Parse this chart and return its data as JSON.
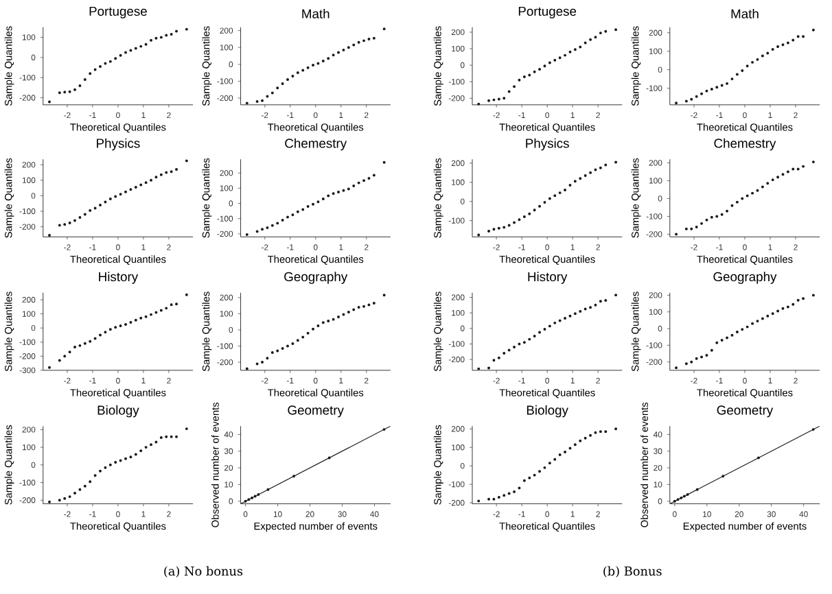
{
  "chart_data": [
    {
      "type": "scatter",
      "title": "Portugese",
      "xlabel": "Theoretical Quantiles",
      "ylabel": "Sample Quantiles",
      "marker": "circle",
      "color": "#1a1a1a",
      "xlim": [
        -2.95,
        2.95
      ],
      "xticks": [
        -2,
        -1,
        0,
        1,
        2
      ],
      "ylim": [
        -235,
        150
      ],
      "yticks": [
        -200,
        -100,
        0,
        100
      ],
      "x": [
        -2.7,
        -2.3,
        -2.1,
        -1.9,
        -1.7,
        -1.5,
        -1.3,
        -1.1,
        -0.9,
        -0.7,
        -0.5,
        -0.3,
        -0.1,
        0.1,
        0.3,
        0.5,
        0.7,
        0.9,
        1.1,
        1.3,
        1.5,
        1.7,
        1.9,
        2.1,
        2.3,
        2.7
      ],
      "values": [
        -220,
        -175,
        -172,
        -170,
        -160,
        -140,
        -110,
        -80,
        -60,
        -45,
        -30,
        -20,
        -5,
        10,
        25,
        35,
        45,
        55,
        65,
        85,
        95,
        100,
        110,
        115,
        130,
        140
      ]
    },
    {
      "type": "scatter",
      "title": "Math",
      "xlabel": "Theoretical Quantiles",
      "ylabel": "Sample Quantiles",
      "marker": "circle",
      "color": "#1a1a1a",
      "xlim": [
        -2.95,
        2.95
      ],
      "xticks": [
        -2,
        -1,
        0,
        1,
        2
      ],
      "ylim": [
        -240,
        220
      ],
      "yticks": [
        -200,
        -100,
        0,
        100,
        200
      ],
      "x": [
        -2.7,
        -2.3,
        -2.1,
        -1.9,
        -1.7,
        -1.5,
        -1.3,
        -1.1,
        -0.9,
        -0.7,
        -0.5,
        -0.3,
        -0.1,
        0.1,
        0.3,
        0.5,
        0.7,
        0.9,
        1.1,
        1.3,
        1.5,
        1.7,
        1.9,
        2.1,
        2.3,
        2.7
      ],
      "values": [
        -230,
        -220,
        -215,
        -190,
        -170,
        -140,
        -115,
        -90,
        -70,
        -50,
        -35,
        -20,
        -5,
        5,
        20,
        35,
        55,
        70,
        85,
        100,
        115,
        130,
        140,
        150,
        155,
        210
      ]
    },
    {
      "type": "scatter",
      "title": "Physics",
      "xlabel": "Theoretical Quantiles",
      "ylabel": "Sample Quantiles",
      "marker": "circle",
      "color": "#1a1a1a",
      "xlim": [
        -2.95,
        2.95
      ],
      "xticks": [
        -2,
        -1,
        0,
        1,
        2
      ],
      "ylim": [
        -265,
        235
      ],
      "yticks": [
        -200,
        -100,
        0,
        100,
        200
      ],
      "x": [
        -2.7,
        -2.3,
        -2.1,
        -1.9,
        -1.7,
        -1.5,
        -1.3,
        -1.1,
        -0.9,
        -0.7,
        -0.5,
        -0.3,
        -0.1,
        0.1,
        0.3,
        0.5,
        0.7,
        0.9,
        1.1,
        1.3,
        1.5,
        1.7,
        1.9,
        2.1,
        2.3,
        2.7
      ],
      "values": [
        -255,
        -190,
        -185,
        -175,
        -160,
        -140,
        -120,
        -95,
        -80,
        -60,
        -40,
        -20,
        -5,
        10,
        25,
        40,
        55,
        70,
        85,
        100,
        120,
        135,
        150,
        155,
        170,
        225
      ]
    },
    {
      "type": "scatter",
      "title": "Chemestry",
      "xlabel": "Theoretical Quantiles",
      "ylabel": "Sample Quantiles",
      "marker": "circle",
      "color": "#1a1a1a",
      "xlim": [
        -2.95,
        2.95
      ],
      "xticks": [
        -2,
        -1,
        0,
        1,
        2
      ],
      "ylim": [
        -220,
        290
      ],
      "yticks": [
        -200,
        -100,
        0,
        100,
        200
      ],
      "x": [
        -2.7,
        -2.3,
        -2.1,
        -1.9,
        -1.7,
        -1.5,
        -1.3,
        -1.1,
        -0.9,
        -0.7,
        -0.5,
        -0.3,
        -0.1,
        0.1,
        0.3,
        0.5,
        0.7,
        0.9,
        1.1,
        1.3,
        1.5,
        1.7,
        1.9,
        2.1,
        2.3,
        2.7
      ],
      "values": [
        -205,
        -185,
        -170,
        -160,
        -145,
        -130,
        -110,
        -90,
        -75,
        -55,
        -40,
        -20,
        -5,
        10,
        30,
        50,
        65,
        75,
        85,
        95,
        115,
        135,
        150,
        165,
        185,
        270
      ]
    },
    {
      "type": "scatter",
      "title": "History",
      "xlabel": "Theoretical Quantiles",
      "ylabel": "Sample Quantiles",
      "marker": "circle",
      "color": "#1a1a1a",
      "xlim": [
        -2.95,
        2.95
      ],
      "xticks": [
        -2,
        -1,
        0,
        1,
        2
      ],
      "ylim": [
        -300,
        250
      ],
      "yticks": [
        -300,
        -200,
        -100,
        0,
        100,
        200
      ],
      "x": [
        -2.7,
        -2.3,
        -2.1,
        -1.9,
        -1.7,
        -1.5,
        -1.3,
        -1.1,
        -0.9,
        -0.7,
        -0.5,
        -0.3,
        -0.1,
        0.1,
        0.3,
        0.5,
        0.7,
        0.9,
        1.1,
        1.3,
        1.5,
        1.7,
        1.9,
        2.1,
        2.3,
        2.7
      ],
      "values": [
        -280,
        -230,
        -200,
        -170,
        -135,
        -125,
        -110,
        -95,
        -75,
        -50,
        -30,
        -10,
        5,
        15,
        25,
        40,
        55,
        70,
        80,
        95,
        110,
        125,
        140,
        165,
        170,
        235
      ]
    },
    {
      "type": "scatter",
      "title": "Geography",
      "xlabel": "Theoretical Quantiles",
      "ylabel": "Sample Quantiles",
      "marker": "circle",
      "color": "#1a1a1a",
      "xlim": [
        -2.95,
        2.95
      ],
      "xticks": [
        -2,
        -1,
        0,
        1,
        2
      ],
      "ylim": [
        -250,
        230
      ],
      "yticks": [
        -200,
        -100,
        0,
        100,
        200
      ],
      "x": [
        -2.7,
        -2.3,
        -2.1,
        -1.9,
        -1.7,
        -1.5,
        -1.3,
        -1.1,
        -0.9,
        -0.7,
        -0.5,
        -0.3,
        -0.1,
        0.1,
        0.3,
        0.5,
        0.7,
        0.9,
        1.1,
        1.3,
        1.5,
        1.7,
        1.9,
        2.1,
        2.3,
        2.7
      ],
      "values": [
        -240,
        -210,
        -200,
        -175,
        -140,
        -130,
        -115,
        -100,
        -85,
        -65,
        -45,
        -20,
        5,
        25,
        45,
        55,
        65,
        80,
        95,
        110,
        125,
        140,
        145,
        155,
        165,
        215
      ]
    },
    {
      "type": "scatter",
      "title": "Biology",
      "xlabel": "Theoretical Quantiles",
      "ylabel": "Sample Quantiles",
      "marker": "circle",
      "color": "#1a1a1a",
      "xlim": [
        -2.95,
        2.95
      ],
      "xticks": [
        -2,
        -1,
        0,
        1,
        2
      ],
      "ylim": [
        -220,
        220
      ],
      "yticks": [
        -200,
        -100,
        0,
        100,
        200
      ],
      "x": [
        -2.7,
        -2.3,
        -2.1,
        -1.9,
        -1.7,
        -1.5,
        -1.3,
        -1.1,
        -0.9,
        -0.7,
        -0.5,
        -0.3,
        -0.1,
        0.1,
        0.3,
        0.5,
        0.7,
        0.9,
        1.1,
        1.3,
        1.5,
        1.7,
        1.9,
        2.1,
        2.3,
        2.7
      ],
      "values": [
        -210,
        -200,
        -190,
        -180,
        -160,
        -140,
        -120,
        -95,
        -60,
        -35,
        -15,
        0,
        15,
        25,
        35,
        45,
        60,
        80,
        100,
        115,
        130,
        155,
        160,
        160,
        160,
        205
      ]
    },
    {
      "type": "scatter",
      "title": "Geometry",
      "xlabel": "Expected number of events",
      "ylabel": "Observed number of events",
      "xlim": [
        -1.5,
        45
      ],
      "xticks": [
        0,
        10,
        20,
        30,
        40
      ],
      "ylim": [
        -1.5,
        45
      ],
      "yticks": [
        0,
        10,
        20,
        30,
        40
      ],
      "annotations": [
        "(a) No bonus"
      ],
      "series": [
        {
          "type": "line",
          "color": "#1a1a1a",
          "x": [
            -1.5,
            45
          ],
          "values": [
            -1.5,
            45
          ]
        },
        {
          "type": "scatter",
          "marker": "circle",
          "color": "#1a1a1a",
          "x": [
            0,
            1,
            2,
            3,
            4,
            7,
            15,
            26,
            43
          ],
          "values": [
            0,
            1,
            2,
            3,
            4,
            7,
            15,
            26,
            43
          ]
        }
      ]
    },
    {
      "type": "scatter",
      "title": "Portugese",
      "xlabel": "Theoretical Quantiles",
      "ylabel": "Sample Quantiles",
      "marker": "circle",
      "color": "#1a1a1a",
      "xlim": [
        -2.95,
        2.95
      ],
      "xticks": [
        -2,
        -1,
        0,
        1,
        2
      ],
      "ylim": [
        -240,
        230
      ],
      "yticks": [
        -200,
        -100,
        0,
        100,
        200
      ],
      "x": [
        -2.7,
        -2.3,
        -2.1,
        -1.9,
        -1.7,
        -1.5,
        -1.3,
        -1.1,
        -0.9,
        -0.7,
        -0.5,
        -0.3,
        -0.1,
        0.1,
        0.3,
        0.5,
        0.7,
        0.9,
        1.1,
        1.3,
        1.5,
        1.7,
        1.9,
        2.1,
        2.3,
        2.7
      ],
      "values": [
        -235,
        -215,
        -210,
        -205,
        -200,
        -160,
        -130,
        -90,
        -70,
        -60,
        -40,
        -25,
        -5,
        15,
        30,
        45,
        60,
        80,
        95,
        110,
        135,
        155,
        170,
        195,
        205,
        215
      ]
    },
    {
      "type": "scatter",
      "title": "Math",
      "xlabel": "Theoretical Quantiles",
      "ylabel": "Sample Quantiles",
      "marker": "circle",
      "color": "#1a1a1a",
      "xlim": [
        -2.95,
        2.95
      ],
      "xticks": [
        -2,
        -1,
        0,
        1,
        2
      ],
      "ylim": [
        -190,
        230
      ],
      "yticks": [
        -100,
        0,
        100,
        200
      ],
      "x": [
        -2.7,
        -2.3,
        -2.1,
        -1.9,
        -1.7,
        -1.5,
        -1.3,
        -1.1,
        -0.9,
        -0.7,
        -0.5,
        -0.3,
        -0.1,
        0.1,
        0.3,
        0.5,
        0.7,
        0.9,
        1.1,
        1.3,
        1.5,
        1.7,
        1.9,
        2.1,
        2.3,
        2.7
      ],
      "values": [
        -180,
        -170,
        -160,
        -145,
        -130,
        -115,
        -105,
        -95,
        -85,
        -75,
        -50,
        -25,
        -5,
        20,
        40,
        55,
        75,
        90,
        110,
        125,
        135,
        145,
        160,
        180,
        180,
        215
      ]
    },
    {
      "type": "scatter",
      "title": "Physics",
      "xlabel": "Theoretical Quantiles",
      "ylabel": "Sample Quantiles",
      "marker": "circle",
      "color": "#1a1a1a",
      "xlim": [
        -2.95,
        2.95
      ],
      "xticks": [
        -2,
        -1,
        0,
        1,
        2
      ],
      "ylim": [
        -185,
        220
      ],
      "yticks": [
        -100,
        0,
        100,
        200
      ],
      "x": [
        -2.7,
        -2.3,
        -2.1,
        -1.9,
        -1.7,
        -1.5,
        -1.3,
        -1.1,
        -0.9,
        -0.7,
        -0.5,
        -0.3,
        -0.1,
        0.1,
        0.3,
        0.5,
        0.7,
        0.9,
        1.1,
        1.3,
        1.5,
        1.7,
        1.9,
        2.1,
        2.3,
        2.7
      ],
      "values": [
        -175,
        -155,
        -145,
        -140,
        -135,
        -125,
        -110,
        -95,
        -80,
        -65,
        -45,
        -25,
        -5,
        15,
        30,
        45,
        60,
        85,
        105,
        120,
        135,
        150,
        165,
        175,
        190,
        205
      ]
    },
    {
      "type": "scatter",
      "title": "Chemestry",
      "xlabel": "Theoretical Quantiles",
      "ylabel": "Sample Quantiles",
      "marker": "circle",
      "color": "#1a1a1a",
      "xlim": [
        -2.95,
        2.95
      ],
      "xticks": [
        -2,
        -1,
        0,
        1,
        2
      ],
      "ylim": [
        -215,
        220
      ],
      "yticks": [
        -200,
        -100,
        0,
        100,
        200
      ],
      "x": [
        -2.7,
        -2.3,
        -2.1,
        -1.9,
        -1.7,
        -1.5,
        -1.3,
        -1.1,
        -0.9,
        -0.7,
        -0.5,
        -0.3,
        -0.1,
        0.1,
        0.3,
        0.5,
        0.7,
        0.9,
        1.1,
        1.3,
        1.5,
        1.7,
        1.9,
        2.1,
        2.3,
        2.7
      ],
      "values": [
        -200,
        -170,
        -170,
        -160,
        -140,
        -120,
        -105,
        -100,
        -90,
        -70,
        -40,
        -20,
        0,
        15,
        30,
        45,
        65,
        85,
        105,
        120,
        135,
        150,
        165,
        165,
        180,
        205
      ]
    },
    {
      "type": "scatter",
      "title": "History",
      "xlabel": "Theoretical Quantiles",
      "ylabel": "Sample Quantiles",
      "marker": "circle",
      "color": "#1a1a1a",
      "xlim": [
        -2.95,
        2.95
      ],
      "xticks": [
        -2,
        -1,
        0,
        1,
        2
      ],
      "ylim": [
        -270,
        230
      ],
      "yticks": [
        -200,
        -100,
        0,
        100,
        200
      ],
      "x": [
        -2.7,
        -2.3,
        -2.1,
        -1.9,
        -1.7,
        -1.5,
        -1.3,
        -1.1,
        -0.9,
        -0.7,
        -0.5,
        -0.3,
        -0.1,
        0.1,
        0.3,
        0.5,
        0.7,
        0.9,
        1.1,
        1.3,
        1.5,
        1.7,
        1.9,
        2.1,
        2.3,
        2.7
      ],
      "values": [
        -260,
        -255,
        -205,
        -190,
        -160,
        -140,
        -120,
        -100,
        -90,
        -70,
        -50,
        -25,
        -5,
        15,
        35,
        50,
        65,
        80,
        95,
        110,
        125,
        135,
        150,
        175,
        180,
        215
      ]
    },
    {
      "type": "scatter",
      "title": "Geography",
      "xlabel": "Theoretical Quantiles",
      "ylabel": "Sample Quantiles",
      "marker": "circle",
      "color": "#1a1a1a",
      "xlim": [
        -2.95,
        2.95
      ],
      "xticks": [
        -2,
        -1,
        0,
        1,
        2
      ],
      "ylim": [
        -250,
        215
      ],
      "yticks": [
        -200,
        -100,
        0,
        100,
        200
      ],
      "x": [
        -2.7,
        -2.3,
        -2.1,
        -1.9,
        -1.7,
        -1.5,
        -1.3,
        -1.1,
        -0.9,
        -0.7,
        -0.5,
        -0.3,
        -0.1,
        0.1,
        0.3,
        0.5,
        0.7,
        0.9,
        1.1,
        1.3,
        1.5,
        1.7,
        1.9,
        2.1,
        2.3,
        2.7
      ],
      "values": [
        -235,
        -210,
        -200,
        -180,
        -170,
        -160,
        -130,
        -85,
        -70,
        -55,
        -40,
        -20,
        -5,
        10,
        30,
        45,
        60,
        75,
        90,
        105,
        120,
        130,
        145,
        170,
        180,
        200
      ]
    },
    {
      "type": "scatter",
      "title": "Biology",
      "xlabel": "Theoretical Quantiles",
      "ylabel": "Sample Quantiles",
      "marker": "circle",
      "color": "#1a1a1a",
      "xlim": [
        -2.95,
        2.95
      ],
      "xticks": [
        -2,
        -1,
        0,
        1,
        2
      ],
      "ylim": [
        -205,
        215
      ],
      "yticks": [
        -200,
        -100,
        0,
        100,
        200
      ],
      "x": [
        -2.7,
        -2.3,
        -2.1,
        -1.9,
        -1.7,
        -1.5,
        -1.3,
        -1.1,
        -0.9,
        -0.7,
        -0.5,
        -0.3,
        -0.1,
        0.1,
        0.3,
        0.5,
        0.7,
        0.9,
        1.1,
        1.3,
        1.5,
        1.7,
        1.9,
        2.1,
        2.3,
        2.7
      ],
      "values": [
        -190,
        -180,
        -180,
        -170,
        -160,
        -150,
        -140,
        -120,
        -80,
        -65,
        -50,
        -30,
        -10,
        15,
        35,
        60,
        75,
        95,
        115,
        135,
        150,
        165,
        180,
        185,
        185,
        200
      ]
    },
    {
      "type": "scatter",
      "title": "Geometry",
      "xlabel": "Expected number of events",
      "ylabel": "Observed number of events",
      "xlim": [
        -1.5,
        45
      ],
      "xticks": [
        0,
        10,
        20,
        30,
        40
      ],
      "ylim": [
        -1.5,
        45
      ],
      "yticks": [
        0,
        10,
        20,
        30,
        40
      ],
      "annotations": [
        "(b) Bonus"
      ],
      "series": [
        {
          "type": "line",
          "color": "#1a1a1a",
          "x": [
            -1.5,
            45
          ],
          "values": [
            -1.5,
            45
          ]
        },
        {
          "type": "scatter",
          "marker": "circle",
          "color": "#1a1a1a",
          "x": [
            0,
            1,
            2,
            3,
            4,
            7,
            15,
            26,
            43
          ],
          "values": [
            0,
            1,
            2,
            3,
            4,
            7,
            15,
            26,
            43
          ]
        }
      ]
    }
  ]
}
